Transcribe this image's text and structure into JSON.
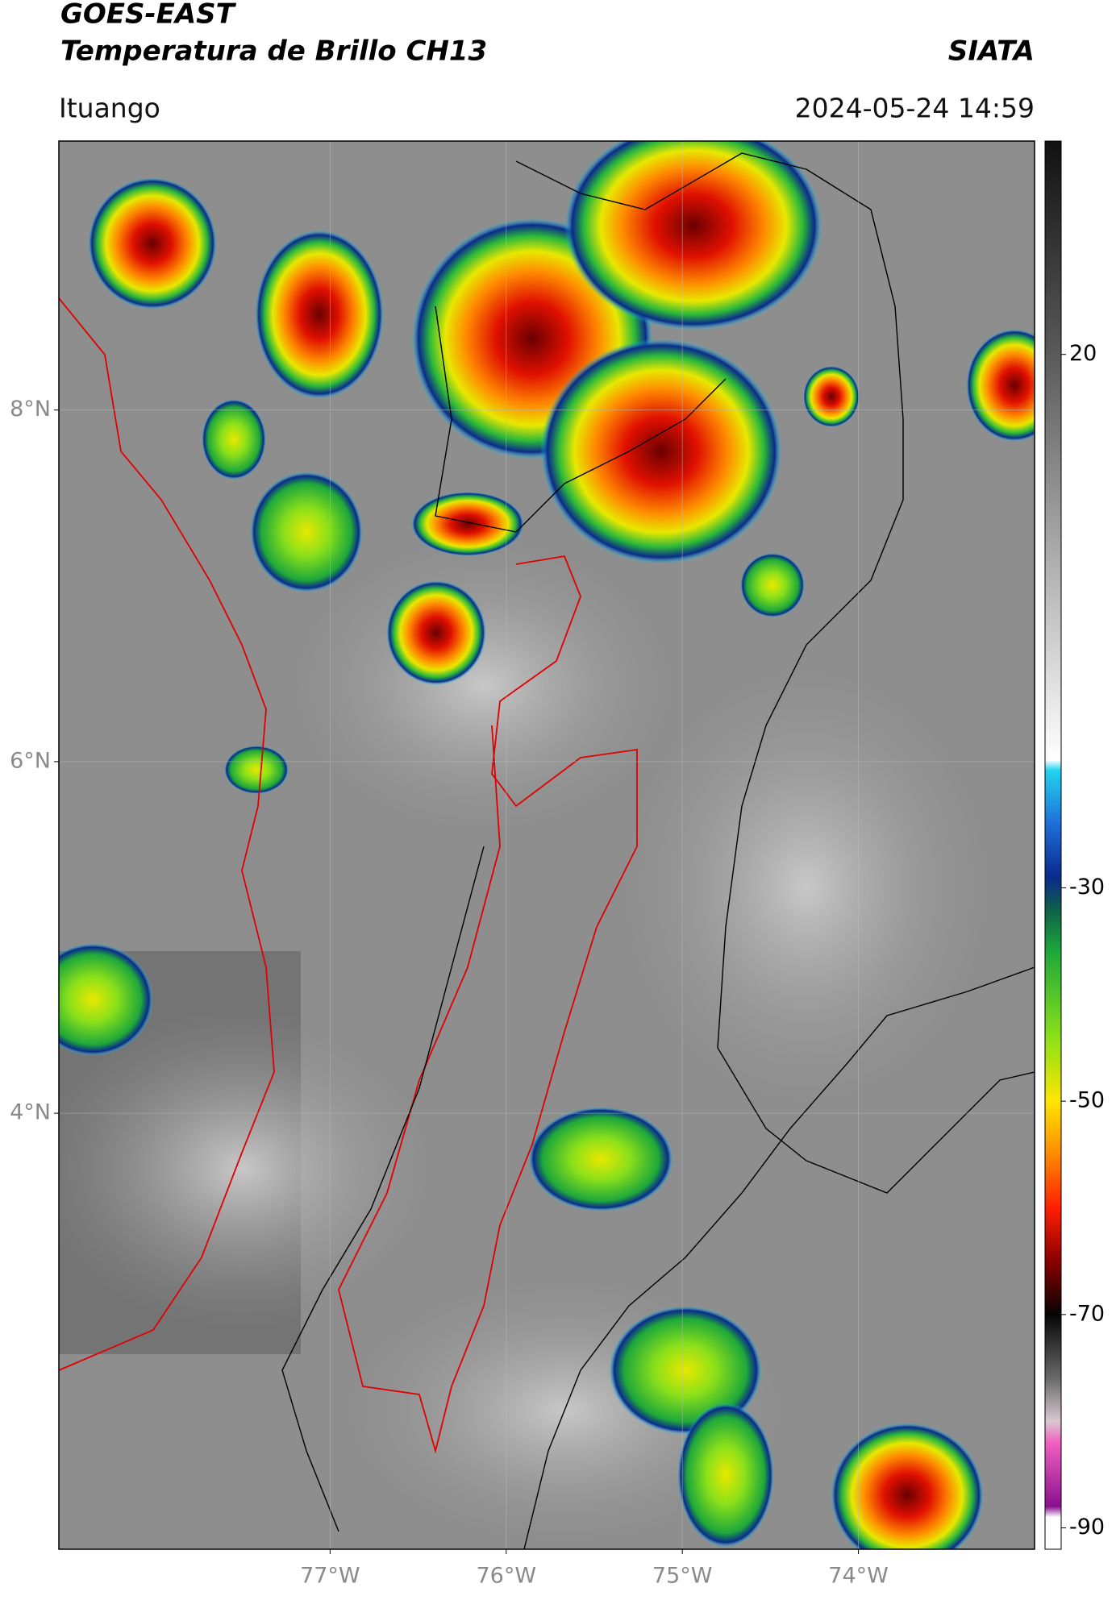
{
  "chart_data": {
    "type": "map",
    "title": "GOES-EAST",
    "subtitle": "Temperatura de Brillo CH13",
    "source": "SIATA",
    "location": "Ituango",
    "timestamp": "2024-05-24 14:59",
    "xlim": [
      -78.54,
      -73.0
    ],
    "ylim": [
      1.52,
      9.53
    ],
    "xticks": [
      {
        "value": -77,
        "label": "77°W"
      },
      {
        "value": -76,
        "label": "76°W"
      },
      {
        "value": -75,
        "label": "75°W"
      },
      {
        "value": -74,
        "label": "74°W"
      }
    ],
    "yticks": [
      {
        "value": 8,
        "label": "8°N"
      },
      {
        "value": 6,
        "label": "6°N"
      },
      {
        "value": 4,
        "label": "4°N"
      }
    ],
    "grid": true,
    "colorbar": {
      "range": [
        40,
        -92
      ],
      "ticks": [
        20,
        -30,
        -50,
        -70,
        -90
      ],
      "colorscale": [
        [
          40,
          "#111111"
        ],
        [
          20,
          "#5a5a5a"
        ],
        [
          -18,
          "#ffffff"
        ],
        [
          -19,
          "#22d3ee"
        ],
        [
          -24,
          "#1e6fd8"
        ],
        [
          -29,
          "#0a2a8c"
        ],
        [
          -32,
          "#0f5f4a"
        ],
        [
          -36,
          "#1fa83a"
        ],
        [
          -44,
          "#8ae01a"
        ],
        [
          -50,
          "#ffe600"
        ],
        [
          -55,
          "#ff8a00"
        ],
        [
          -60,
          "#ff1e00"
        ],
        [
          -65,
          "#8a0000"
        ],
        [
          -70,
          "#050505"
        ],
        [
          -76,
          "#6a6a6a"
        ],
        [
          -80,
          "#d9c8d0"
        ],
        [
          -82,
          "#f060c0"
        ],
        [
          -88,
          "#8a1090"
        ],
        [
          -89,
          "#ffffff"
        ],
        [
          -92,
          "#ffffff"
        ]
      ]
    }
  }
}
